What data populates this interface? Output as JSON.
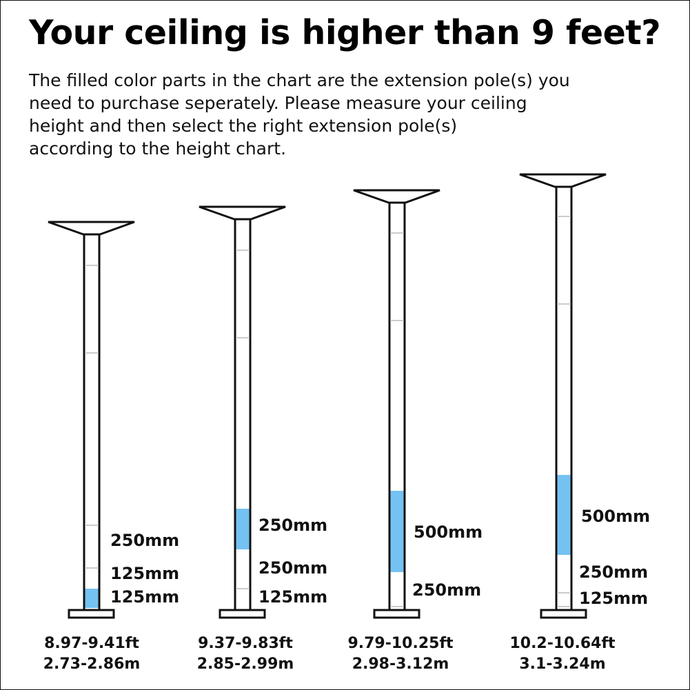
{
  "title": "Your ceiling is higher than 9 feet?",
  "description": "The filled color parts in the chart are the extension pole(s) you\nneed to purchase seperately.  Please measure your ceiling\nheight and then select the right extension pole(s)\naccording to the height chart.",
  "fill_color": "#74c2f2",
  "poles": [
    {
      "segment_labels": [
        "250mm",
        "125mm",
        "125mm"
      ],
      "height_ft": "8.97-9.41ft",
      "height_m": "2.73-2.86m"
    },
    {
      "segment_labels": [
        "250mm",
        "250mm",
        "125mm"
      ],
      "height_ft": "9.37-9.83ft",
      "height_m": "2.85-2.99m"
    },
    {
      "segment_labels": [
        "500mm",
        "250mm"
      ],
      "height_ft": "9.79-10.25ft",
      "height_m": "2.98-3.12m"
    },
    {
      "segment_labels": [
        "500mm",
        "250mm",
        "125mm"
      ],
      "height_ft": "10.2-10.64ft",
      "height_m": "3.1-3.24m"
    }
  ]
}
